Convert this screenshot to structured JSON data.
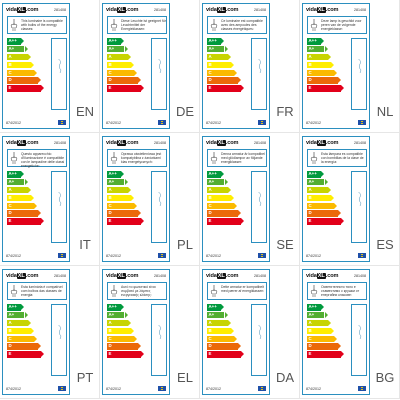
{
  "brand": {
    "name": "vidaXL",
    "prefix": "vida",
    "suffix": "XL",
    "domain": ".com"
  },
  "product_code": "281408",
  "regulation": "874/2012",
  "energy_classes": [
    {
      "label": "A++",
      "color": "#009a3e"
    },
    {
      "label": "A+",
      "color": "#52ae32"
    },
    {
      "label": "A",
      "color": "#c8d400"
    },
    {
      "label": "B",
      "color": "#ffed00"
    },
    {
      "label": "C",
      "color": "#fbba00"
    },
    {
      "label": "D",
      "color": "#eb6909"
    },
    {
      "label": "E",
      "color": "#e2001a"
    }
  ],
  "label_border_color": "#2b8fbf",
  "icons": [
    "lamp-icon",
    "eu-flag-icon"
  ],
  "languages": [
    {
      "code": "EN",
      "text": "This luminaire is compatible with bulbs of the energy classes:"
    },
    {
      "code": "DE",
      "text": "Diese Leuchte ist geeignet für Leuchtmittel der Energieklassen:"
    },
    {
      "code": "FR",
      "text": "Ce luminaire est compatible avec des ampoules des classes énergétiques:"
    },
    {
      "code": "NL",
      "text": "Deze lamp is geschikt voor peren van de volgende energieklasse:"
    },
    {
      "code": "IT",
      "text": "Questo apparecchio d'illuminazione è compatibile con le lampadine delle classi energetiche:"
    },
    {
      "code": "PL",
      "text": "Oprawa oświetleniowa jest kompatybilna z żarówkami klas energetycznych:"
    },
    {
      "code": "SE",
      "text": "Denna armatur är kompatibel med glödlampor av följande energiklasser:"
    },
    {
      "code": "ES",
      "text": "Esta lámpara es compatible con bombillas de la clase de la energía:"
    },
    {
      "code": "PT",
      "text": "Esta luminária é compatível com bolbos das classes de energia:"
    },
    {
      "code": "EL",
      "text": "Αυτό το φωτιστικό είναι συμβατό με λάμπες ενεργειακής κλάσης:"
    },
    {
      "code": "DA",
      "text": "Dette armatur er kompatibelt med pærer af energiklassen:"
    },
    {
      "code": "BG",
      "text": "Осветителното тяло е съвместимо с крушки от енергийни класове:"
    }
  ]
}
